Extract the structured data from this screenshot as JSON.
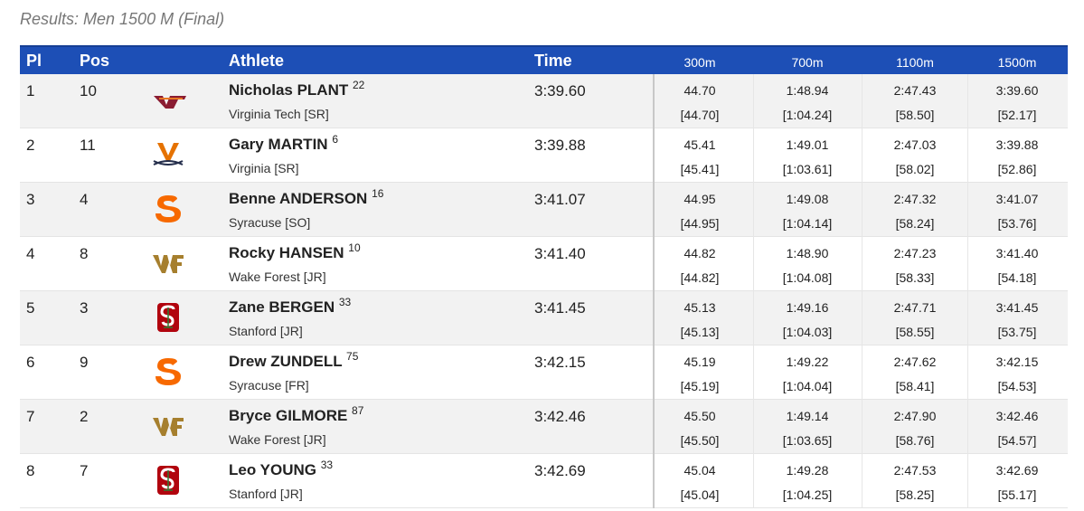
{
  "title": "Results: Men 1500 M (Final)",
  "table": {
    "headers": [
      "Pl",
      "Pos",
      "Athlete",
      "Time",
      "300m",
      "700m",
      "1100m",
      "1500m"
    ],
    "rows": [
      {
        "place": "1",
        "pos": "10",
        "name": "Nicholas PLANT",
        "bib": "22",
        "school": "Virginia Tech [SR]",
        "time": "3:39.60",
        "logo": "vt",
        "splits": [
          [
            "44.70",
            "[44.70]"
          ],
          [
            "1:48.94",
            "[1:04.24]"
          ],
          [
            "2:47.43",
            "[58.50]"
          ],
          [
            "3:39.60",
            "[52.17]"
          ]
        ]
      },
      {
        "place": "2",
        "pos": "11",
        "name": "Gary MARTIN",
        "bib": "6",
        "school": "Virginia [SR]",
        "time": "3:39.88",
        "logo": "uva",
        "splits": [
          [
            "45.41",
            "[45.41]"
          ],
          [
            "1:49.01",
            "[1:03.61]"
          ],
          [
            "2:47.03",
            "[58.02]"
          ],
          [
            "3:39.88",
            "[52.86]"
          ]
        ]
      },
      {
        "place": "3",
        "pos": "4",
        "name": "Benne ANDERSON",
        "bib": "16",
        "school": "Syracuse [SO]",
        "time": "3:41.07",
        "logo": "cuse",
        "splits": [
          [
            "44.95",
            "[44.95]"
          ],
          [
            "1:49.08",
            "[1:04.14]"
          ],
          [
            "2:47.32",
            "[58.24]"
          ],
          [
            "3:41.07",
            "[53.76]"
          ]
        ]
      },
      {
        "place": "4",
        "pos": "8",
        "name": "Rocky HANSEN",
        "bib": "10",
        "school": "Wake Forest [JR]",
        "time": "3:41.40",
        "logo": "wf",
        "splits": [
          [
            "44.82",
            "[44.82]"
          ],
          [
            "1:48.90",
            "[1:04.08]"
          ],
          [
            "2:47.23",
            "[58.33]"
          ],
          [
            "3:41.40",
            "[54.18]"
          ]
        ]
      },
      {
        "place": "5",
        "pos": "3",
        "name": "Zane BERGEN",
        "bib": "33",
        "school": "Stanford [JR]",
        "time": "3:41.45",
        "logo": "stan",
        "splits": [
          [
            "45.13",
            "[45.13]"
          ],
          [
            "1:49.16",
            "[1:04.03]"
          ],
          [
            "2:47.71",
            "[58.55]"
          ],
          [
            "3:41.45",
            "[53.75]"
          ]
        ]
      },
      {
        "place": "6",
        "pos": "9",
        "name": "Drew ZUNDELL",
        "bib": "75",
        "school": "Syracuse [FR]",
        "time": "3:42.15",
        "logo": "cuse",
        "splits": [
          [
            "45.19",
            "[45.19]"
          ],
          [
            "1:49.22",
            "[1:04.04]"
          ],
          [
            "2:47.62",
            "[58.41]"
          ],
          [
            "3:42.15",
            "[54.53]"
          ]
        ]
      },
      {
        "place": "7",
        "pos": "2",
        "name": "Bryce GILMORE",
        "bib": "87",
        "school": "Wake Forest [JR]",
        "time": "3:42.46",
        "logo": "wf",
        "splits": [
          [
            "45.50",
            "[45.50]"
          ],
          [
            "1:49.14",
            "[1:03.65]"
          ],
          [
            "2:47.90",
            "[58.76]"
          ],
          [
            "3:42.46",
            "[54.57]"
          ]
        ]
      },
      {
        "place": "8",
        "pos": "7",
        "name": "Leo YOUNG",
        "bib": "33",
        "school": "Stanford [JR]",
        "time": "3:42.69",
        "logo": "stan",
        "splits": [
          [
            "45.04",
            "[45.04]"
          ],
          [
            "1:49.28",
            "[1:04.25]"
          ],
          [
            "2:47.53",
            "[58.25]"
          ],
          [
            "3:42.69",
            "[55.17]"
          ]
        ]
      }
    ]
  }
}
